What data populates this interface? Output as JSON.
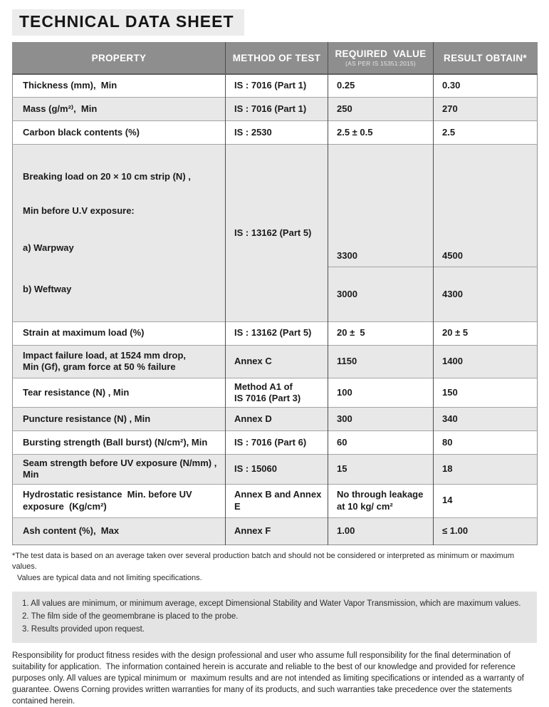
{
  "title": "TECHNICAL DATA SHEET",
  "table": {
    "columns": {
      "property": "PROPERTY",
      "method": "METHOD OF TEST",
      "required": "REQUIRED  VALUE",
      "required_sub": "(AS PER IS 15351:2015)",
      "result": "RESULT OBTAIN*"
    },
    "rows": [
      {
        "property": "Thickness (mm),  Min",
        "method": "IS : 7016 (Part 1)",
        "required": "0.25",
        "result": "0.30"
      },
      {
        "property": "Mass (g/m²⁾,  Min",
        "method": "IS : 7016 (Part 1)",
        "required": "250",
        "result": "270"
      },
      {
        "property": "Carbon black contents (%)",
        "method": "IS : 2530",
        "required": "2.5 ± 0.5",
        "result": "2.5"
      },
      {
        "property_lines": [
          "Breaking load on 20 × 10 cm strip (N) ,",
          "Min before U.V exposure:",
          "a) Warpway",
          "b) Weftway"
        ],
        "method": "IS : 13162 (Part 5)",
        "sub_rows": [
          {
            "required": "3300",
            "result": "4500"
          },
          {
            "required": "3000",
            "result": "4300"
          }
        ]
      },
      {
        "property": "Strain at maximum load (%)",
        "method": "IS : 13162 (Part 5)",
        "required": "20 ±  5",
        "result": "20 ± 5"
      },
      {
        "property": "Impact failure load, at 1524 mm drop,\nMin (Gf), gram force at 50 % failure",
        "method": "Annex C",
        "required": "1150",
        "result": "1400"
      },
      {
        "property": "Tear resistance (N) , Min",
        "method": "Method A1 of\nIS 7016 (Part 3)",
        "required": "100",
        "result": "150"
      },
      {
        "property": "Puncture resistance (N) , Min",
        "method": "Annex D",
        "required": "300",
        "result": "340"
      },
      {
        "property": "Bursting strength (Ball burst) (N/cm²), Min",
        "method": "IS : 7016 (Part 6)",
        "required": "60",
        "result": "80"
      },
      {
        "property": "Seam strength before UV exposure (N/mm) , Min",
        "method": "IS : 15060",
        "required": "15",
        "result": "18"
      },
      {
        "property": "Hydrostatic resistance  Min. before UV\nexposure  (Kg/cm²)",
        "method": "Annex B and Annex E",
        "required": "No through leakage\nat 10 kg/ cm²",
        "result": "14"
      },
      {
        "property": "Ash content (%),  Max",
        "method": "Annex F",
        "required": "1.00",
        "result": "≤ 1.00"
      }
    ]
  },
  "footnote_lines": [
    "*The test data is based on an average taken over several production batch and should not be considered or interpreted as minimum or maximum values.",
    "Values are typical data and not limiting specifications."
  ],
  "notes": [
    "1. All values are minimum, or minimum average, except Dimensional Stability and Water Vapor Transmission, which are maximum values.",
    "2. The film side of the geomembrane is placed to the probe.",
    "3. Results provided upon request."
  ],
  "disclaimer": "Responsibility for product fitness resides with the design professional and user who assume full responsibility for the final determination of suitability for application.  The information contained herein is accurate and reliable to the best of our knowledge and provided for reference purposes only. All values are typical minimum or  maximum results and are not intended as limiting specifications or intended as a warranty of guarantee. Owens Corning provides written warranties for many of its products, and such warranties take precedence over the statements contained herein."
}
